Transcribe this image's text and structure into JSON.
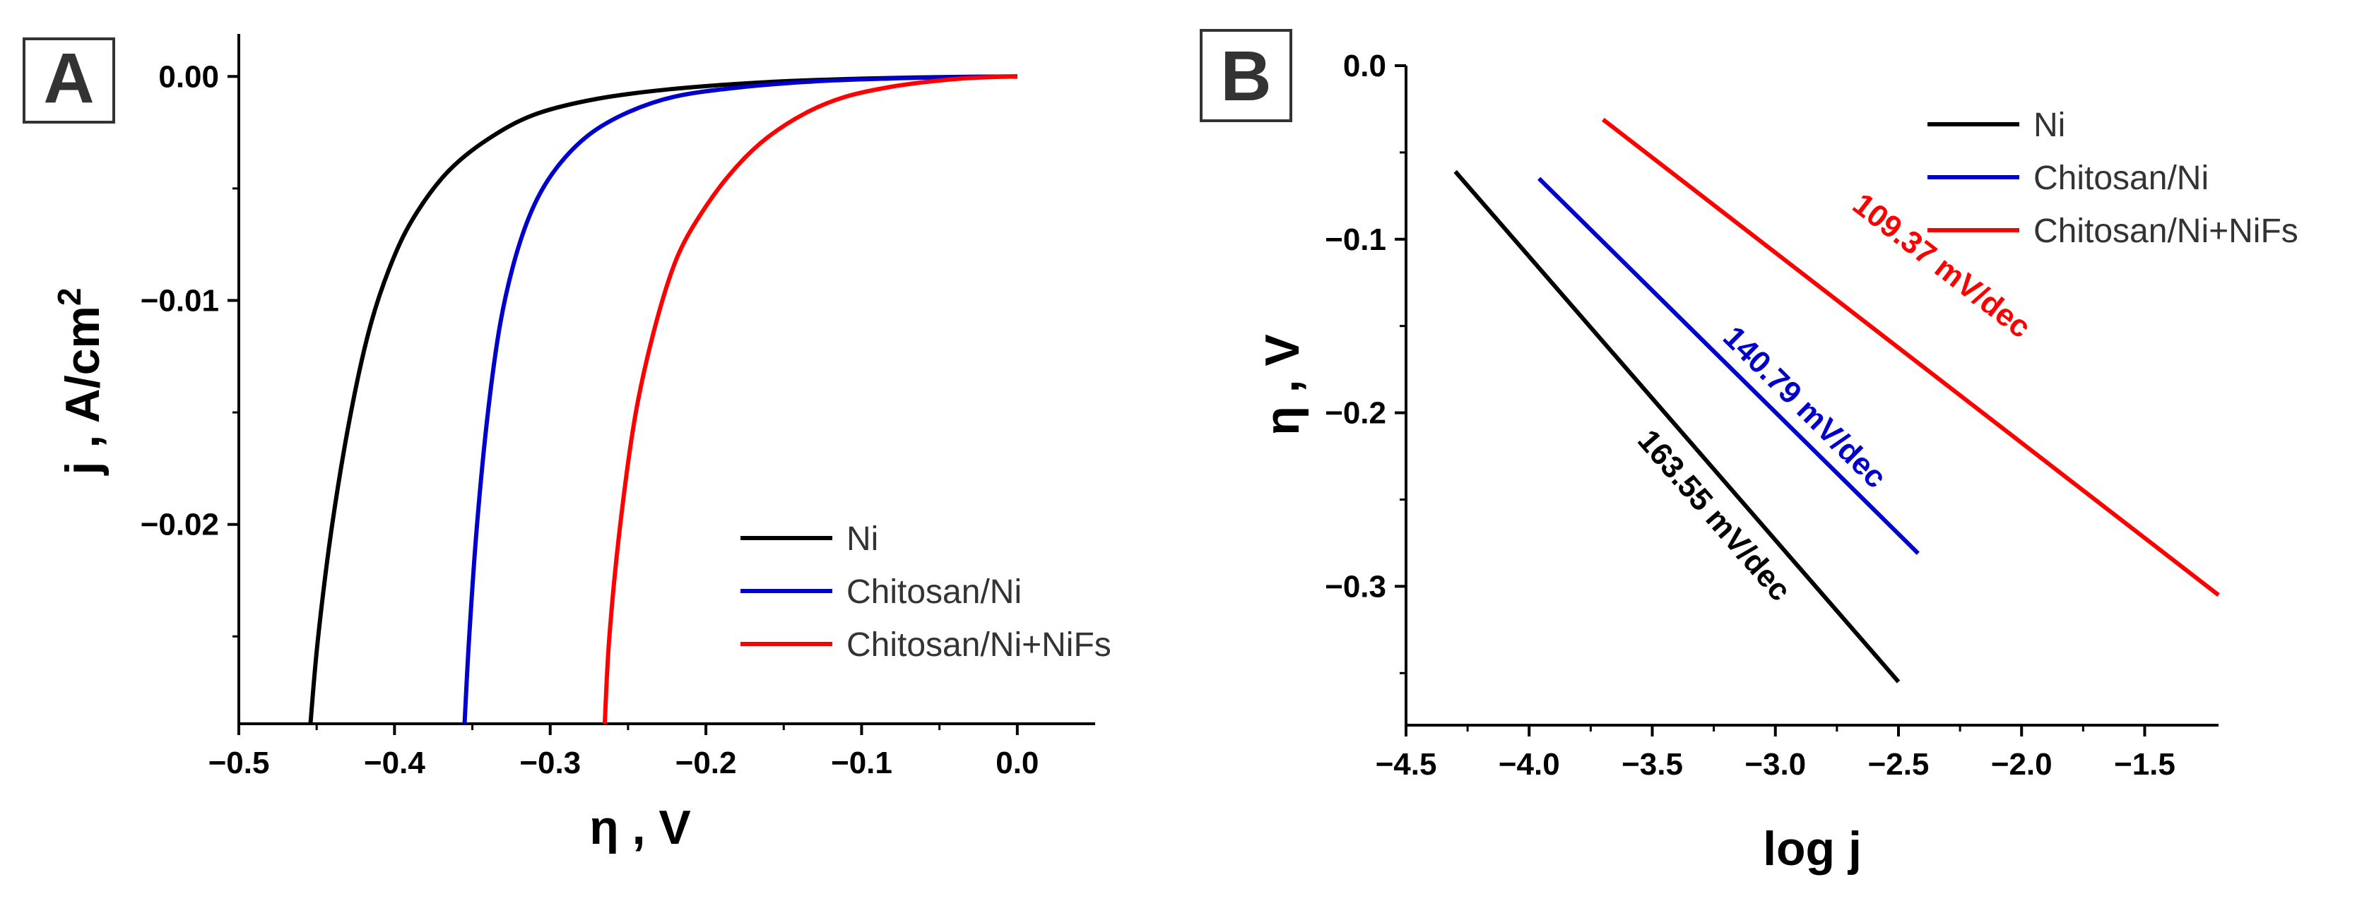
{
  "panels": {
    "a": {
      "label": "A"
    },
    "b": {
      "label": "B"
    }
  },
  "colors": {
    "Ni": "#000000",
    "Chitosan/Ni": "#0000cc",
    "Chitosan/Ni+NiFs": "#ff0000"
  },
  "chart_data": [
    {
      "type": "line",
      "panel": "A",
      "title": "",
      "xlabel": "η , V",
      "ylabel": "j , A/cm",
      "ylabel_sup": "2",
      "xlim": [
        -0.5,
        0.05
      ],
      "ylim": [
        -0.0289,
        0.0019
      ],
      "xticks": [
        -0.5,
        -0.4,
        -0.3,
        -0.2,
        -0.1,
        0.0
      ],
      "xtick_labels": [
        "−0.5",
        "−0.4",
        "−0.3",
        "−0.2",
        "−0.1",
        "0.0"
      ],
      "yticks": [
        0.0,
        -0.01,
        -0.02
      ],
      "ytick_labels": [
        "0.00",
        "−0.01",
        "−0.02"
      ],
      "legend": {
        "position": "bottom-right"
      },
      "series": [
        {
          "name": "Ni",
          "color": "#000000",
          "x": [
            -0.454,
            -0.449,
            -0.44,
            -0.428,
            -0.415,
            -0.4,
            -0.385,
            -0.365,
            -0.34,
            -0.31,
            -0.27,
            -0.22,
            -0.16,
            -0.1,
            -0.05,
            0.0
          ],
          "y": [
            -0.0289,
            -0.025,
            -0.02,
            -0.015,
            -0.011,
            -0.008,
            -0.006,
            -0.0042,
            -0.0028,
            -0.0017,
            -0.001,
            -0.00055,
            -0.00025,
            -0.0001,
            -3e-05,
            0.0
          ]
        },
        {
          "name": "Chitosan/Ni",
          "color": "#0000cc",
          "x": [
            -0.355,
            -0.352,
            -0.347,
            -0.34,
            -0.332,
            -0.322,
            -0.31,
            -0.295,
            -0.275,
            -0.25,
            -0.22,
            -0.18,
            -0.13,
            -0.08,
            -0.04,
            0.0
          ],
          "y": [
            -0.0289,
            -0.025,
            -0.02,
            -0.015,
            -0.011,
            -0.008,
            -0.0057,
            -0.004,
            -0.0026,
            -0.0016,
            -0.0009,
            -0.0005,
            -0.00022,
            -9e-05,
            -3e-05,
            0.0
          ]
        },
        {
          "name": "Chitosan/Ni+NiFs",
          "color": "#ff0000",
          "x": [
            -0.265,
            -0.262,
            -0.255,
            -0.245,
            -0.232,
            -0.218,
            -0.2,
            -0.18,
            -0.16,
            -0.135,
            -0.11,
            -0.08,
            -0.05,
            -0.025,
            0.0
          ],
          "y": [
            -0.0289,
            -0.025,
            -0.02,
            -0.015,
            -0.011,
            -0.008,
            -0.0058,
            -0.004,
            -0.0027,
            -0.0016,
            -0.0009,
            -0.00045,
            -0.00018,
            -5e-05,
            0.0
          ]
        }
      ]
    },
    {
      "type": "line",
      "panel": "B",
      "title": "",
      "xlabel": "log j",
      "ylabel": "η , V",
      "xlim": [
        -4.5,
        -1.2
      ],
      "ylim": [
        -0.38,
        0.0
      ],
      "xticks": [
        -4.5,
        -4.0,
        -3.5,
        -3.0,
        -2.5,
        -2.0,
        -1.5
      ],
      "xtick_labels": [
        "−4.5",
        "−4.0",
        "−3.5",
        "−3.0",
        "−2.5",
        "−2.0",
        "−1.5"
      ],
      "yticks": [
        0.0,
        -0.1,
        -0.2,
        -0.3
      ],
      "ytick_labels": [
        "0.0",
        "−0.1",
        "−0.2",
        "−0.3"
      ],
      "legend": {
        "position": "top-right"
      },
      "series": [
        {
          "name": "Ni",
          "color": "#000000",
          "x": [
            -4.3,
            -2.5
          ],
          "y": [
            -0.061,
            -0.355
          ]
        },
        {
          "name": "Chitosan/Ni",
          "color": "#0000cc",
          "x": [
            -3.96,
            -2.42
          ],
          "y": [
            -0.065,
            -0.281
          ]
        },
        {
          "name": "Chitosan/Ni+NiFs",
          "color": "#ff0000",
          "x": [
            -3.7,
            -1.2
          ],
          "y": [
            -0.031,
            -0.305
          ]
        }
      ],
      "annotations": [
        {
          "text": "163.55 mV/dec",
          "color": "#000000",
          "x": -3.28,
          "y": -0.263
        },
        {
          "text": "140.79 mV/dec",
          "color": "#0000cc",
          "x": -2.91,
          "y": -0.201
        },
        {
          "text": "109.37 mV/dec",
          "color": "#ff0000",
          "x": -2.35,
          "y": -0.12
        }
      ]
    }
  ]
}
